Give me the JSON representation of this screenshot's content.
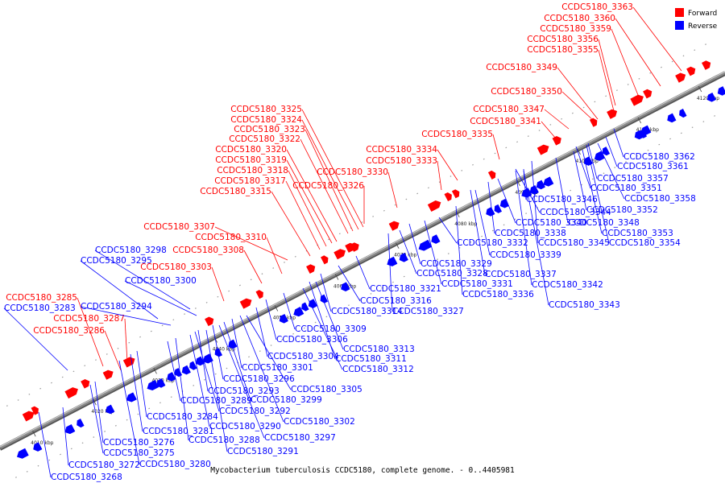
{
  "caption": "Mycobacterium tuberculosis CCDC5180, complete genome. - 0..4405981",
  "legend": [
    {
      "label": "Forward",
      "color": "#ff0000"
    },
    {
      "label": "Reverse",
      "color": "#0000ff"
    }
  ],
  "colors": {
    "forward": "#ff0000",
    "reverse": "#0000ff",
    "backbone": "#888888"
  },
  "kbp_ticks": [
    "4010 kbp",
    "4020 kbp",
    "4030 kbp",
    "4040 kbp",
    "4050 kbp",
    "4060 kbp",
    "4070 kbp",
    "4080 kbp",
    "4090 kbp",
    "4100 kbp",
    "4110 kbp",
    "4120 kbp"
  ],
  "forward_labels": [
    "CCDC5180_3363",
    "CCDC5180_3360",
    "CCDC5180_3359",
    "CCDC5180_3356",
    "CCDC5180_3355",
    "CCDC5180_3349",
    "CCDC5180_3350",
    "CCDC5180_3347",
    "CCDC5180_3341",
    "CCDC5180_3335",
    "CCDC5180_3334",
    "CCDC5180_3333",
    "CCDC5180_3330",
    "CCDC5180_3326",
    "CCDC5180_3325",
    "CCDC5180_3324",
    "CCDC5180_3323",
    "CCDC5180_3322",
    "CCDC5180_3320",
    "CCDC5180_3319",
    "CCDC5180_3318",
    "CCDC5180_3317",
    "CCDC5180_3315",
    "CCDC5180_3307",
    "CCDC5180_3310",
    "CCDC5180_3308",
    "CCDC5180_3303",
    "CCDC5180_3285",
    "CCDC5180_3287",
    "CCDC5180_3286"
  ],
  "reverse_labels": [
    "CCDC5180_3362",
    "CCDC5180_3361",
    "CCDC5180_3357",
    "CCDC5180_3351",
    "CCDC5180_3358",
    "CCDC5180_3346",
    "CCDC5180_3344",
    "CCDC5180_3352",
    "CCDC5180_3340",
    "CCDC5180_3348",
    "CCDC5180_3338",
    "CCDC5180_3353",
    "CCDC5180_3332",
    "CCDC5180_3345",
    "CCDC5180_3354",
    "CCDC5180_3339",
    "CCDC5180_3329",
    "CCDC5180_3328",
    "CCDC5180_3337",
    "CCDC5180_3331",
    "CCDC5180_3342",
    "CCDC5180_3336",
    "CCDC5180_3343",
    "CCDC5180_3321",
    "CCDC5180_3316",
    "CCDC5180_3314",
    "CCDC5180_3327",
    "CCDC5180_3298",
    "CCDC5180_3295",
    "CCDC5180_3300",
    "CCDC5180_3283",
    "CCDC5180_3294",
    "CCDC5180_3309",
    "CCDC5180_3306",
    "CCDC5180_3313",
    "CCDC5180_3304",
    "CCDC5180_3311",
    "CCDC5180_3301",
    "CCDC5180_3312",
    "CCDC5180_3296",
    "CCDC5180_3305",
    "CCDC5180_3293",
    "CCDC5180_3289",
    "CCDC5180_3299",
    "CCDC5180_3292",
    "CCDC5180_3284",
    "CCDC5180_3302",
    "CCDC5180_3290",
    "CCDC5180_3281",
    "CCDC5180_3288",
    "CCDC5180_3297",
    "CCDC5180_3291",
    "CCDC5180_3276",
    "CCDC5180_3275",
    "CCDC5180_3280",
    "CCDC5180_3272",
    "CCDC5180_3268"
  ]
}
